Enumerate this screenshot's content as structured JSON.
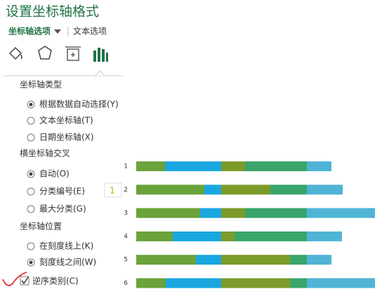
{
  "pane": {
    "title": "设置坐标轴格式",
    "tabs": [
      "坐标轴选项",
      "文本选项"
    ],
    "sections": [
      {
        "heading": "坐标轴类型",
        "options": [
          "根据数据自动选择(Y)",
          "文本坐标轴(T)",
          "日期坐标轴(X)"
        ],
        "selected": 0
      },
      {
        "heading": "横坐标轴交叉",
        "options": [
          "自动(O)",
          "分类编号(E)",
          "最大分类(G)"
        ],
        "selected": 0
      },
      {
        "heading": "坐标轴位置",
        "options": [
          "在刻度线上(K)",
          "刻度线之间(W)"
        ],
        "selected": 1
      }
    ],
    "input": "1",
    "checkbox": "逆序类别(C)"
  },
  "chart_data": {
    "type": "bar",
    "orientation": "horizontal",
    "stacked": true,
    "categories": [
      "1",
      "2",
      "3",
      "4",
      "5",
      "6"
    ],
    "xlim": [
      0,
      340
    ],
    "series": [
      {
        "color": "#6aa33a",
        "values": [
          41,
          97,
          91,
          52,
          85,
          42
        ]
      },
      {
        "color": "#1aa7e0",
        "values": [
          80,
          24,
          30,
          69,
          36,
          79
        ]
      },
      {
        "color": "#7d9b2b",
        "values": [
          34,
          70,
          34,
          19,
          98,
          98
        ]
      },
      {
        "color": "#39a56b",
        "values": [
          88,
          52,
          88,
          103,
          24,
          24
        ]
      },
      {
        "color": "#4fb4d6",
        "values": [
          35,
          51,
          97,
          50,
          35,
          97
        ]
      }
    ]
  }
}
